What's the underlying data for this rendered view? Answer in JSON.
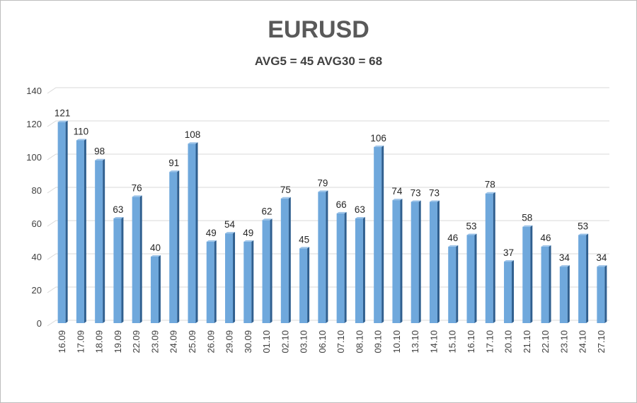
{
  "chart_data": {
    "type": "bar",
    "title": "EURUSD",
    "subtitle": "AVG5 = 45 AVG30 = 68",
    "xlabel": "",
    "ylabel": "",
    "ylim": [
      0,
      140
    ],
    "yticks": [
      0,
      20,
      40,
      60,
      80,
      100,
      120,
      140
    ],
    "grid": true,
    "legend": "none",
    "categories": [
      "16.09",
      "17.09",
      "18.09",
      "19.09",
      "22.09",
      "23.09",
      "24.09",
      "25.09",
      "26.09",
      "29.09",
      "30.09",
      "01.10",
      "02.10",
      "03.10",
      "06.10",
      "07.10",
      "08.10",
      "09.10",
      "10.10",
      "13.10",
      "14.10",
      "15.10",
      "16.10",
      "17.10",
      "20.10",
      "21.10",
      "22.10",
      "23.10",
      "24.10",
      "27.10"
    ],
    "values": [
      121,
      110,
      98,
      63,
      76,
      40,
      91,
      108,
      49,
      54,
      49,
      62,
      75,
      45,
      79,
      66,
      63,
      106,
      74,
      73,
      73,
      46,
      53,
      78,
      37,
      58,
      46,
      34,
      53,
      34
    ],
    "colors": {
      "bar_front": "#6fa8dc",
      "bar_side": "#2f5f8f",
      "grid": "#d9d9d9"
    }
  }
}
